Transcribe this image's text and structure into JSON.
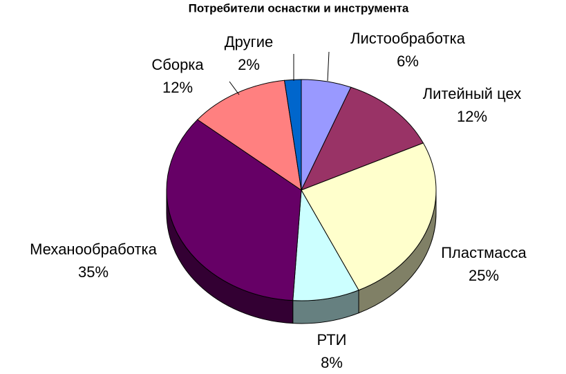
{
  "chart_data": {
    "type": "pie",
    "title": "Потребители оснастки и инструмента",
    "categories": [
      "Листообработка",
      "Литейный цех",
      "Пластмасса",
      "РТИ",
      "Механообработка",
      "Сборка",
      "Другие"
    ],
    "values": [
      6,
      12,
      25,
      8,
      35,
      12,
      2
    ],
    "value_labels": [
      "6%",
      "12%",
      "25%",
      "8%",
      "35%",
      "12%",
      "2%"
    ],
    "colors": [
      "#9999ff",
      "#993366",
      "#ffffcc",
      "#ccffff",
      "#660066",
      "#ff8080",
      "#0066cc"
    ]
  }
}
